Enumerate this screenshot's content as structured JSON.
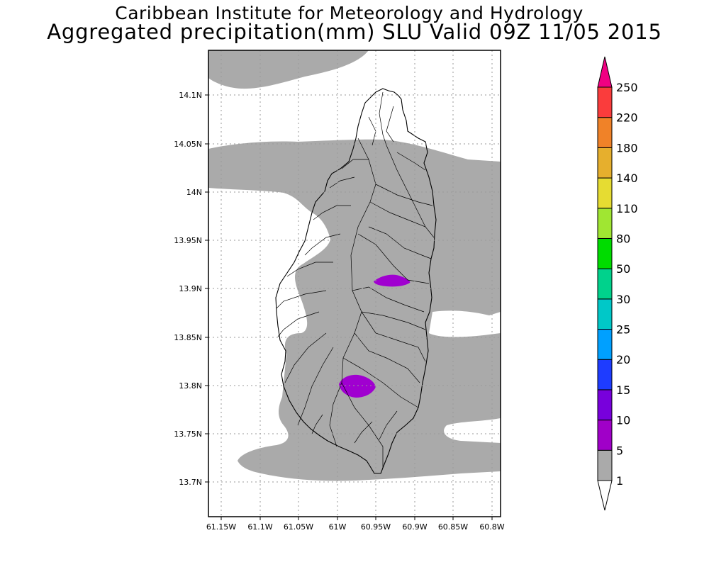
{
  "header": {
    "title_line1": "Caribbean Institute for Meteorology and Hydrology",
    "title_line2": "Aggregated precipitation(mm) SLU Valid 09Z 11/05 2015"
  },
  "map": {
    "region": "Saint Lucia",
    "lon_ticks": [
      "61.15W",
      "61.1W",
      "61.05W",
      "61W",
      "60.95W",
      "60.9W",
      "60.85W",
      "60.8W"
    ],
    "lat_ticks": [
      "14.1N",
      "14.05N",
      "14N",
      "13.95N",
      "13.9N",
      "13.85N",
      "13.8N",
      "13.75N",
      "13.7N"
    ],
    "grid": true,
    "land_outline_color": "#000000",
    "precip_fill_gray": "#aaaaaa",
    "precip_fill_purple": "#a000d0",
    "features": [
      {
        "name": "gray-band-north",
        "class": "1-5"
      },
      {
        "name": "gray-band-central",
        "class": "1-5"
      },
      {
        "name": "gray-band-south",
        "class": "1-5"
      },
      {
        "name": "purple-blob-east",
        "class": "5-10"
      },
      {
        "name": "purple-blob-south",
        "class": "5-10"
      }
    ]
  },
  "colorbar": {
    "labels": [
      "1",
      "5",
      "10",
      "15",
      "20",
      "25",
      "30",
      "50",
      "80",
      "110",
      "140",
      "180",
      "220",
      "250"
    ],
    "colors": [
      "#ffffff",
      "#aaaaaa",
      "#a000c8",
      "#7800dc",
      "#1e3cff",
      "#00a0ff",
      "#00c8c8",
      "#00d28c",
      "#00dc00",
      "#a0e632",
      "#e6dc32",
      "#e6af2d",
      "#f08228",
      "#fa3c3c",
      "#f00082"
    ]
  }
}
